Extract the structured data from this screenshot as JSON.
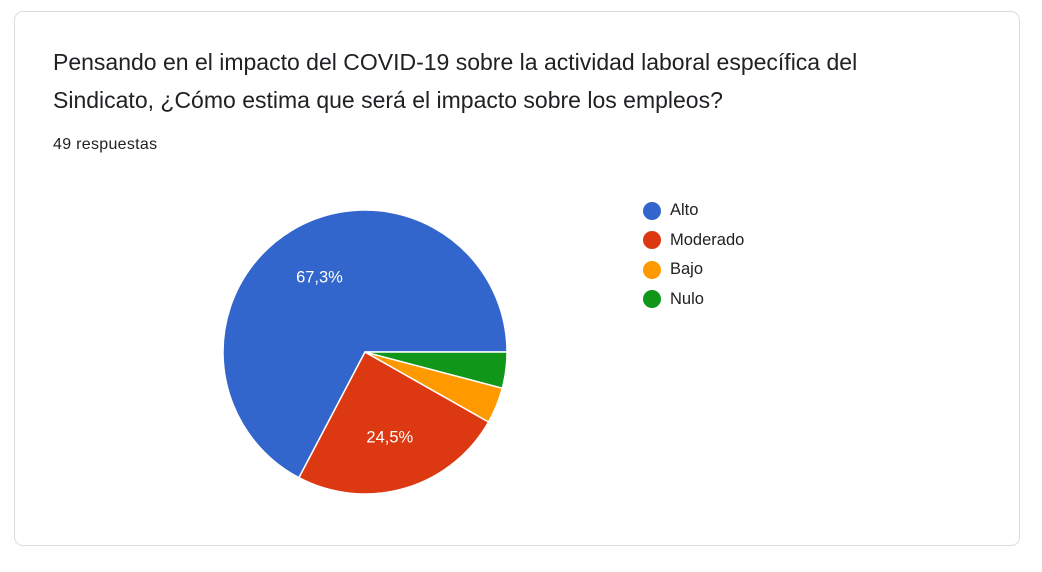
{
  "question": {
    "title": "Pensando en el impacto del COVID-19 sobre la actividad laboral específica del Sindicato, ¿Cómo estima que será el impacto sobre los empleos?",
    "response_count": "49 respuestas"
  },
  "chart_data": {
    "type": "pie",
    "title": "Pensando en el impacto del COVID-19 sobre la actividad laboral específica del Sindicato, ¿Cómo estima que será el impacto sobre los empleos?",
    "categories": [
      "Alto",
      "Moderado",
      "Bajo",
      "Nulo"
    ],
    "values": [
      67.3,
      24.5,
      4.1,
      4.1
    ],
    "counts": [
      33,
      12,
      2,
      2
    ],
    "data_labels": [
      "67,3%",
      "24,5%",
      "",
      ""
    ],
    "colors": [
      "#3366cc",
      "#dc3912",
      "#ff9900",
      "#109618"
    ],
    "legend_position": "right",
    "start_angle": "3 o'clock, counterclockwise"
  }
}
